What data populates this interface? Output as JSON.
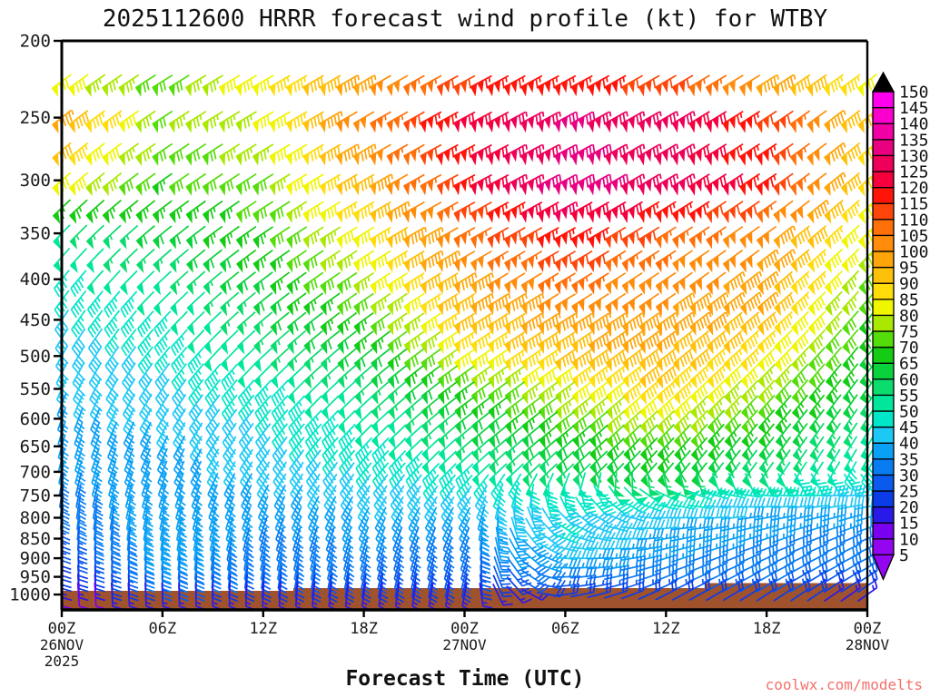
{
  "header": {
    "title": "2025112600 HRRR forecast wind profile (kt) for WTBY"
  },
  "footer": {
    "xlabel": "Forecast Time (UTC)",
    "watermark": "coolwx.com/modelts"
  },
  "chart_data": {
    "type": "wind-barb-time-height",
    "title": "2025112600 HRRR forecast wind profile (kt) for WTBY",
    "model": "HRRR",
    "init_cycle": "2025112600",
    "station": "WTBY",
    "units": "kt",
    "xlabel": "Forecast Time (UTC)",
    "x_range_hours": [
      0,
      48
    ],
    "y_ticks_pressure": [
      200,
      250,
      300,
      350,
      400,
      450,
      500,
      550,
      600,
      650,
      700,
      750,
      800,
      850,
      900,
      950,
      1000
    ],
    "x_ticks": [
      {
        "hour": 0,
        "label": "00Z",
        "sub": "26NOV",
        "sub2": "2025"
      },
      {
        "hour": 6,
        "label": "06Z"
      },
      {
        "hour": 12,
        "label": "12Z"
      },
      {
        "hour": 18,
        "label": "18Z"
      },
      {
        "hour": 24,
        "label": "00Z",
        "sub": "27NOV"
      },
      {
        "hour": 30,
        "label": "06Z"
      },
      {
        "hour": 36,
        "label": "12Z"
      },
      {
        "hour": 42,
        "label": "18Z"
      },
      {
        "hour": 48,
        "label": "00Z",
        "sub": "28NOV"
      }
    ],
    "colorbar": {
      "tick_labels": [
        5,
        10,
        15,
        20,
        25,
        30,
        35,
        40,
        45,
        50,
        55,
        60,
        65,
        70,
        75,
        80,
        85,
        90,
        95,
        100,
        105,
        110,
        115,
        120,
        125,
        130,
        135,
        140,
        145,
        150
      ],
      "boxes": [
        {
          "ge": 5,
          "color": "#9405F0"
        },
        {
          "ge": 10,
          "color": "#7A00F0"
        },
        {
          "ge": 15,
          "color": "#2A1AE8"
        },
        {
          "ge": 20,
          "color": "#0A3CE8"
        },
        {
          "ge": 25,
          "color": "#0A5AEE"
        },
        {
          "ge": 30,
          "color": "#0A7CF2"
        },
        {
          "ge": 35,
          "color": "#0AA0F5"
        },
        {
          "ge": 40,
          "color": "#1EC8F5"
        },
        {
          "ge": 45,
          "color": "#00E6C8"
        },
        {
          "ge": 50,
          "color": "#00E69B"
        },
        {
          "ge": 55,
          "color": "#0ADC6E"
        },
        {
          "ge": 60,
          "color": "#0AD23C"
        },
        {
          "ge": 65,
          "color": "#14CC14"
        },
        {
          "ge": 70,
          "color": "#55DD0A"
        },
        {
          "ge": 75,
          "color": "#AAE800"
        },
        {
          "ge": 80,
          "color": "#F0F500"
        },
        {
          "ge": 85,
          "color": "#FFDC0A"
        },
        {
          "ge": 90,
          "color": "#FFC00A"
        },
        {
          "ge": 95,
          "color": "#FFA50A"
        },
        {
          "ge": 100,
          "color": "#FF8C0A"
        },
        {
          "ge": 105,
          "color": "#FF700A"
        },
        {
          "ge": 110,
          "color": "#FF460A"
        },
        {
          "ge": 115,
          "color": "#FF140A"
        },
        {
          "ge": 120,
          "color": "#F5003C"
        },
        {
          "ge": 125,
          "color": "#EE005A"
        },
        {
          "ge": 130,
          "color": "#E80080"
        },
        {
          "ge": 135,
          "color": "#F000A5"
        },
        {
          "ge": 140,
          "color": "#FA00CC"
        },
        {
          "ge": 145,
          "color": "#FF00EE"
        }
      ],
      "over_arrow_color": "#000000",
      "under_arrow_color": "#9405F0"
    },
    "terrain": {
      "color": "#A0522D",
      "surface_steps": [
        [
          0,
          651
        ],
        [
          13.8,
          651
        ],
        [
          13.8,
          648
        ],
        [
          38.3,
          648
        ],
        [
          38.3,
          642.5
        ],
        [
          48,
          642.5
        ]
      ]
    },
    "barb_grid": {
      "times_h": [
        0,
        6,
        12,
        18,
        24,
        30,
        36,
        42,
        48
      ],
      "levels_hpa": [
        225,
        250,
        300,
        350,
        400,
        450,
        500,
        550,
        600,
        650,
        700,
        750,
        800,
        850,
        900,
        950,
        1000
      ],
      "speed_kt": [
        [
          80,
          70,
          82,
          97,
          112,
          115,
          110,
          95,
          82
        ],
        [
          95,
          72,
          78,
          102,
          118,
          128,
          125,
          112,
          88
        ],
        [
          80,
          67,
          72,
          92,
          115,
          130,
          126,
          114,
          85
        ],
        [
          52,
          60,
          66,
          82,
          105,
          116,
          106,
          99,
          78
        ],
        [
          46,
          52,
          62,
          74,
          96,
          104,
          100,
          95,
          72
        ],
        [
          42,
          46,
          56,
          66,
          88,
          96,
          95,
          90,
          66
        ],
        [
          40,
          43,
          52,
          59,
          78,
          88,
          92,
          81,
          62
        ],
        [
          38,
          41,
          46,
          53,
          66,
          76,
          86,
          73,
          58
        ],
        [
          36,
          39,
          43,
          49,
          59,
          69,
          76,
          66,
          54
        ],
        [
          35,
          36,
          41,
          46,
          53,
          61,
          66,
          59,
          50
        ],
        [
          33,
          36,
          39,
          43,
          46,
          56,
          61,
          53,
          46
        ],
        [
          30,
          36,
          36,
          39,
          41,
          46,
          49,
          44,
          41
        ],
        [
          28,
          36,
          33,
          36,
          36,
          42,
          39,
          37,
          34
        ],
        [
          25,
          36,
          31,
          33,
          31,
          43,
          36,
          33,
          31
        ],
        [
          22,
          35,
          29,
          29,
          28,
          39,
          33,
          31,
          29
        ],
        [
          18,
          31,
          26,
          26,
          23,
          31,
          29,
          28,
          26
        ],
        [
          10,
          16,
          16,
          15,
          13,
          19,
          21,
          19,
          16
        ]
      ],
      "dir_from_deg": [
        [
          234,
          238,
          240,
          240,
          242,
          242,
          240,
          238,
          233
        ],
        [
          232,
          237,
          240,
          240,
          242,
          242,
          240,
          237,
          231
        ],
        [
          229,
          235,
          238,
          240,
          242,
          242,
          239,
          236,
          229
        ],
        [
          224,
          231,
          236,
          239,
          241,
          241,
          238,
          234,
          226
        ],
        [
          219,
          227,
          233,
          237,
          239,
          239,
          236,
          231,
          223
        ],
        [
          214,
          223,
          230,
          234,
          238,
          238,
          234,
          229,
          220
        ],
        [
          209,
          219,
          227,
          231,
          236,
          236,
          232,
          226,
          218
        ],
        [
          204,
          214,
          223,
          228,
          234,
          234,
          229,
          223,
          216
        ],
        [
          199,
          210,
          220,
          226,
          232,
          232,
          226,
          221,
          213
        ],
        [
          196,
          206,
          216,
          223,
          229,
          229,
          223,
          218,
          211
        ],
        [
          194,
          202,
          212,
          219,
          226,
          227,
          220,
          215,
          208
        ],
        [
          190,
          197,
          206,
          212,
          216,
          175,
          115,
          95,
          85
        ],
        [
          186,
          192,
          201,
          206,
          208,
          135,
          90,
          80,
          73
        ],
        [
          182,
          188,
          196,
          200,
          202,
          110,
          80,
          71,
          65
        ],
        [
          179,
          184,
          192,
          196,
          198,
          95,
          73,
          65,
          61
        ],
        [
          177,
          181,
          188,
          192,
          194,
          88,
          68,
          61,
          58
        ],
        [
          176,
          178,
          183,
          188,
          190,
          82,
          63,
          57,
          55
        ]
      ]
    }
  }
}
